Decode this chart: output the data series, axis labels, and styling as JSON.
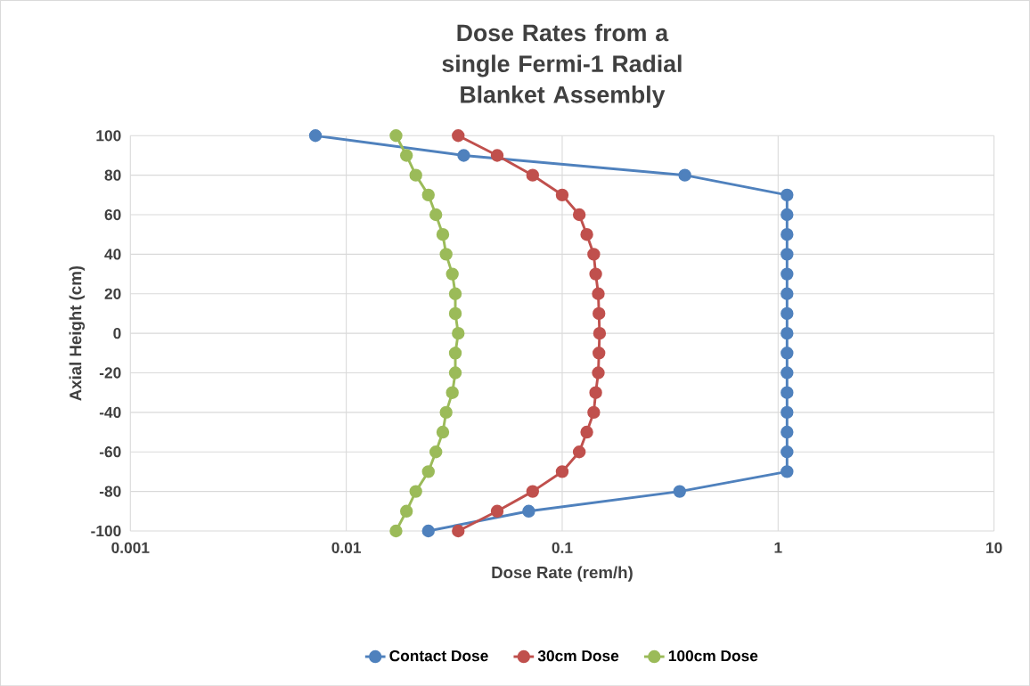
{
  "chart_data": {
    "type": "line",
    "title": "Dose Rates from a single Fermi-1 Radial Blanket Assembly",
    "xlabel": "Dose Rate (rem/h)",
    "ylabel": "Axial Height (cm)",
    "log": "x",
    "xlim": [
      0.001,
      10
    ],
    "xticks": [
      0.001,
      0.01,
      0.1,
      1,
      10
    ],
    "ylim": [
      -100,
      100
    ],
    "yticks": [
      -100,
      -80,
      -60,
      -40,
      -20,
      0,
      20,
      40,
      60,
      80,
      100
    ],
    "grid": true,
    "legend": "bottom",
    "marker": "circle",
    "line_style": "solid",
    "series": [
      {
        "name": "Contact Dose",
        "color": "#4f81bd",
        "x": [
          0.0072,
          0.035,
          0.37,
          1.1,
          1.1,
          1.1,
          1.1,
          1.1,
          1.1,
          1.1,
          1.1,
          1.1,
          1.1,
          1.1,
          1.1,
          1.1,
          1.1,
          1.1,
          0.35,
          0.07,
          0.024
        ],
        "values": [
          100,
          90,
          80,
          70,
          60,
          50,
          40,
          30,
          20,
          10,
          0,
          -10,
          -20,
          -30,
          -40,
          -50,
          -60,
          -70,
          -80,
          -90,
          -100
        ]
      },
      {
        "name": "30cm Dose",
        "color": "#c0504d",
        "x": [
          0.033,
          0.05,
          0.073,
          0.1,
          0.12,
          0.13,
          0.14,
          0.143,
          0.147,
          0.148,
          0.149,
          0.148,
          0.147,
          0.143,
          0.14,
          0.13,
          0.12,
          0.1,
          0.073,
          0.05,
          0.033
        ],
        "values": [
          100,
          90,
          80,
          70,
          60,
          50,
          40,
          30,
          20,
          10,
          0,
          -10,
          -20,
          -30,
          -40,
          -50,
          -60,
          -70,
          -80,
          -90,
          -100
        ]
      },
      {
        "name": "100cm Dose",
        "color": "#9bbb59",
        "x": [
          0.017,
          0.019,
          0.021,
          0.024,
          0.026,
          0.028,
          0.029,
          0.031,
          0.032,
          0.032,
          0.033,
          0.032,
          0.032,
          0.031,
          0.029,
          0.028,
          0.026,
          0.024,
          0.021,
          0.019,
          0.017
        ],
        "values": [
          100,
          90,
          80,
          70,
          60,
          50,
          40,
          30,
          20,
          10,
          0,
          -10,
          -20,
          -30,
          -40,
          -50,
          -60,
          -70,
          -80,
          -90,
          -100
        ]
      }
    ]
  }
}
